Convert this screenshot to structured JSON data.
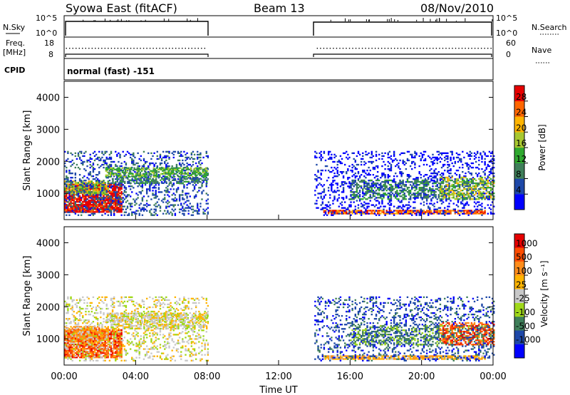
{
  "header": {
    "station": "Syowa East (fitACF)",
    "beam": "Beam 13",
    "date": "08/Nov/2010"
  },
  "strip_labels": {
    "nsky": "N.Sky",
    "nsearch": "N.Search",
    "freq": "Freq.",
    "mhz": "[MHz]",
    "nave": "Nave",
    "cpid": "CPID",
    "cpid_value": "normal (fast) -151",
    "nsky_top": "10^5",
    "nsky_bot": "10^0",
    "freq_top": "18",
    "freq_bot": "8",
    "nave_top": "60",
    "nave_bot": "0"
  },
  "colors": {
    "power": [
      "#0000ff",
      "#1e48a8",
      "#3f7f5a",
      "#2fa82f",
      "#a8c830",
      "#ffb400",
      "#ff6600",
      "#e60000"
    ],
    "velocity": [
      "#e60000",
      "#ff4d00",
      "#ff8c1a",
      "#ffb400",
      "#c8c8c8",
      "#9fd81a",
      "#3f7f5a",
      "#1e48a8",
      "#0000ff"
    ]
  },
  "chart_data": [
    {
      "type": "heatmap",
      "name": "power",
      "xlabel": "Time UT",
      "ylabel": "Slant Range [km]",
      "x_ticks": [
        "00:00",
        "04:00",
        "08:00",
        "12:00",
        "16:00",
        "20:00",
        "00:00"
      ],
      "y_ticks": [
        1000,
        2000,
        3000,
        4000
      ],
      "xlim_hours": [
        0,
        24
      ],
      "ylim_km": [
        180,
        4500
      ],
      "colorbar": {
        "label": "Power [dB]",
        "ticks": [
          4,
          8,
          12,
          16,
          20,
          24,
          28
        ],
        "range": [
          0,
          30
        ]
      },
      "data_gaps_hours": [
        [
          8,
          14
        ]
      ]
    },
    {
      "type": "heatmap",
      "name": "velocity",
      "xlabel": "Time UT",
      "ylabel": "Slant Range [km]",
      "x_ticks": [
        "00:00",
        "04:00",
        "08:00",
        "12:00",
        "16:00",
        "20:00",
        "00:00"
      ],
      "y_ticks": [
        1000,
        2000,
        3000,
        4000
      ],
      "xlim_hours": [
        0,
        24
      ],
      "ylim_km": [
        180,
        4500
      ],
      "colorbar": {
        "label": "Velocity [m s⁻¹]",
        "ticks": [
          "1000",
          "500",
          "100",
          "25",
          "-25",
          "-100",
          "-500",
          "-1000"
        ]
      },
      "data_gaps_hours": [
        [
          8,
          14
        ]
      ]
    }
  ]
}
